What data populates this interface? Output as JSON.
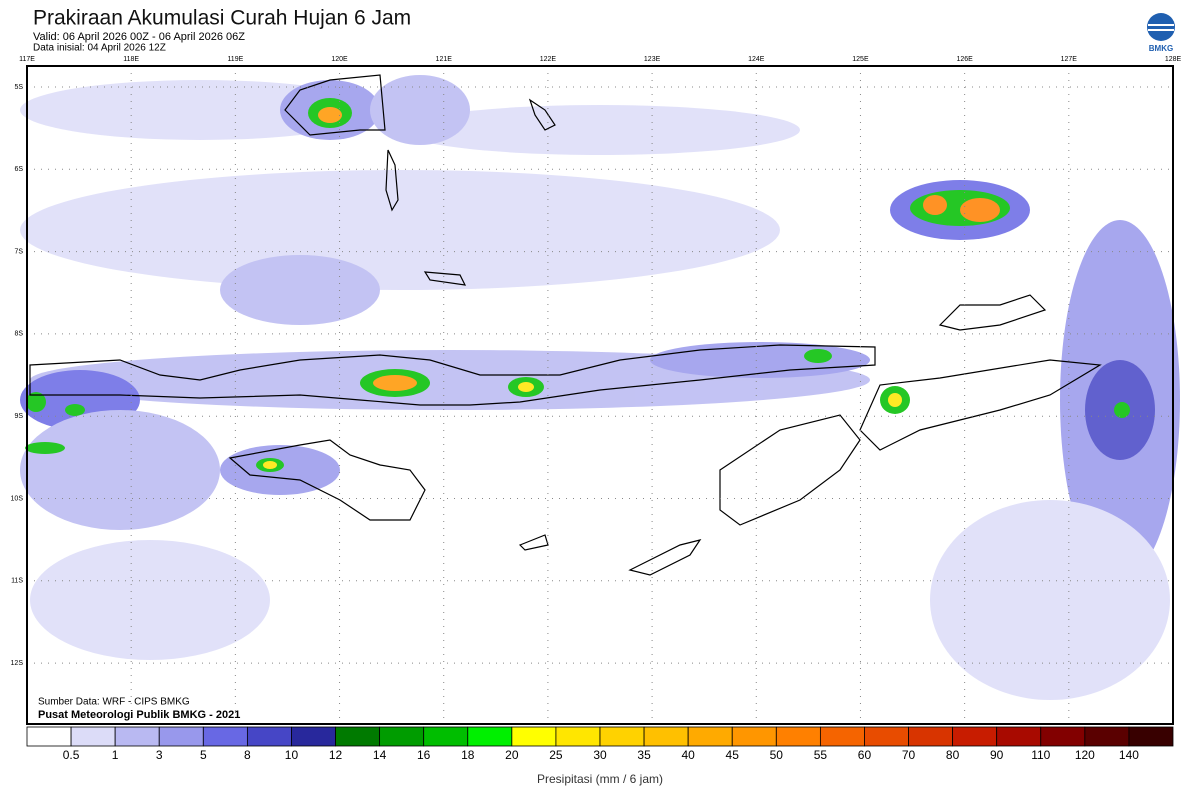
{
  "header": {
    "title": "Prakiraan Akumulasi Curah Hujan 6 Jam",
    "valid": "Valid: 06 April 2026 00Z - 06 April 2026 06Z",
    "initial": "Data inisial: 04 April 2026 12Z",
    "logo": "BMKG"
  },
  "map": {
    "longitudes": [
      "117E",
      "118E",
      "119E",
      "120E",
      "121E",
      "122E",
      "123E",
      "124E",
      "125E",
      "126E",
      "127E",
      "128E"
    ],
    "latitudes": [
      "5S",
      "6S",
      "7S",
      "8S",
      "9S",
      "10S",
      "11S",
      "12S"
    ],
    "source": "Sumber Data: WRF - CIPS BMKG",
    "credit": "Pusat Meteorologi Publik BMKG - 2021"
  },
  "legend": {
    "labels": [
      "0.5",
      "1",
      "3",
      "5",
      "8",
      "10",
      "12",
      "14",
      "16",
      "18",
      "20",
      "25",
      "30",
      "35",
      "40",
      "45",
      "50",
      "55",
      "60",
      "70",
      "80",
      "90",
      "110",
      "120",
      "140"
    ],
    "colors": [
      "#ffffff",
      "#dcdcf8",
      "#b9b9f2",
      "#9898ec",
      "#6868e4",
      "#4646c6",
      "#28289c",
      "#007a00",
      "#009c00",
      "#00be00",
      "#00f000",
      "#ffff00",
      "#ffe600",
      "#ffd200",
      "#ffc000",
      "#ffaa00",
      "#ff9600",
      "#ff8000",
      "#f56400",
      "#e84c00",
      "#d83400",
      "#c81c00",
      "#a80a00",
      "#820000",
      "#5a0000",
      "#380000"
    ],
    "title": "Presipitasi (mm / 6 jam)"
  }
}
